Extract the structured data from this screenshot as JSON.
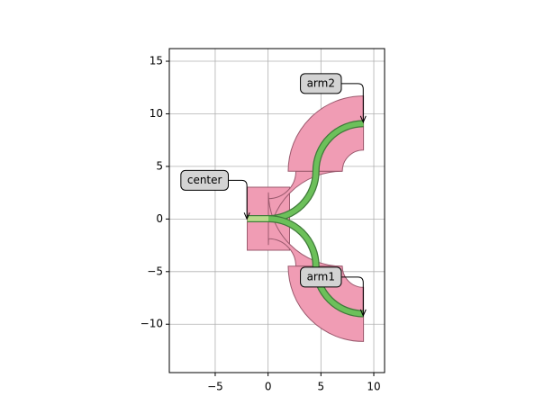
{
  "chart_data": {
    "type": "layout",
    "xlim": [
      -9.34,
      11.02
    ],
    "ylim": [
      -14.6,
      16.2
    ],
    "xticks": [
      {
        "value": -5,
        "label": "−5"
      },
      0,
      5,
      10
    ],
    "yticks": [
      {
        "value": -10,
        "label": "−10"
      },
      {
        "value": -5,
        "label": "−5"
      },
      0,
      5,
      10,
      15
    ],
    "grid": true,
    "annotations": [
      {
        "text": "center",
        "xy": [
          -2,
          0
        ]
      },
      {
        "text": "arm2",
        "xy": [
          9,
          9.2
        ]
      },
      {
        "text": "arm1",
        "xy": [
          9,
          -9.2
        ]
      }
    ]
  }
}
